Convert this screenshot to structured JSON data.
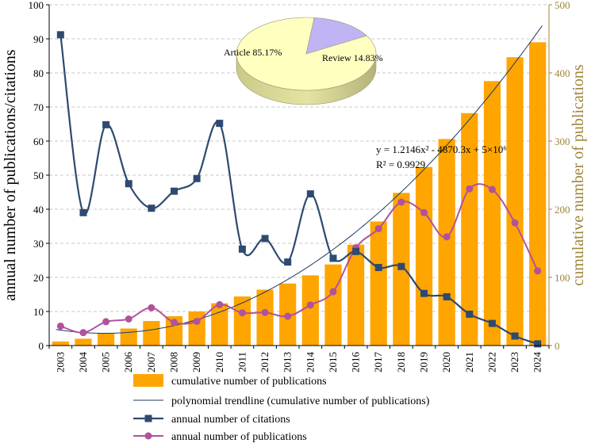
{
  "chart_data": {
    "type": "bar",
    "categories": [
      "2003",
      "2004",
      "2005",
      "2006",
      "2007",
      "2008",
      "2009",
      "2010",
      "2011",
      "2012",
      "2013",
      "2014",
      "2015",
      "2016",
      "2017",
      "2018",
      "2019",
      "2020",
      "2021",
      "2022",
      "2023",
      "2024"
    ],
    "left_axis": {
      "label": "annual number of publications/citations",
      "ylim": [
        0,
        100
      ],
      "ticks": [
        0,
        10,
        20,
        30,
        40,
        50,
        60,
        70,
        80,
        90,
        100
      ]
    },
    "right_axis": {
      "label": "cumulative number of publications",
      "ylim": [
        0,
        500
      ],
      "ticks": [
        0,
        100,
        200,
        300,
        400,
        500
      ]
    },
    "series": [
      {
        "name": "cumulative number of publications",
        "kind": "bar",
        "axis": "right",
        "color": "#ffa500",
        "values": [
          6,
          10,
          18,
          25,
          36,
          43,
          50,
          62,
          72,
          82,
          91,
          103,
          119,
          148,
          182,
          224,
          262,
          303,
          341,
          388,
          423,
          445
        ]
      },
      {
        "name": "polynomial trendline (cumulative number of publications)",
        "kind": "trendline",
        "axis": "right",
        "color": "#1f3a63"
      },
      {
        "name": "annual number of citations",
        "kind": "line",
        "axis": "left",
        "marker": "square",
        "color": "#2e4a70",
        "values": [
          91.2,
          39.0,
          64.8,
          47.5,
          40.3,
          45.3,
          49.0,
          65.2,
          28.3,
          31.4,
          24.5,
          44.5,
          25.6,
          27.6,
          22.9,
          23.2,
          15.3,
          14.3,
          9.2,
          6.5,
          2.8,
          0.5
        ]
      },
      {
        "name": "annual number of publications",
        "kind": "line",
        "axis": "left",
        "marker": "circle",
        "color": "#b0529c",
        "values": [
          5.7,
          3.8,
          7.0,
          7.8,
          11.1,
          6.8,
          7.1,
          12.0,
          9.6,
          9.7,
          8.6,
          11.9,
          15.8,
          28.7,
          34.3,
          42.1,
          39.0,
          31.9,
          46.0,
          45.8,
          36.0,
          21.9
        ]
      }
    ],
    "trendline": {
      "equation": "y = 1.2146x² - 4870.3x + 5×10⁶",
      "r_squared": "R² = 0.9929"
    },
    "inset_pie": {
      "type": "pie",
      "slices": [
        {
          "label": "Article",
          "value": 85.17,
          "text": "Article 85.17%",
          "color": "#ffffc0"
        },
        {
          "label": "Review",
          "value": 14.83,
          "text": "Review 14.83%",
          "color": "#c0b4f4"
        }
      ]
    }
  }
}
